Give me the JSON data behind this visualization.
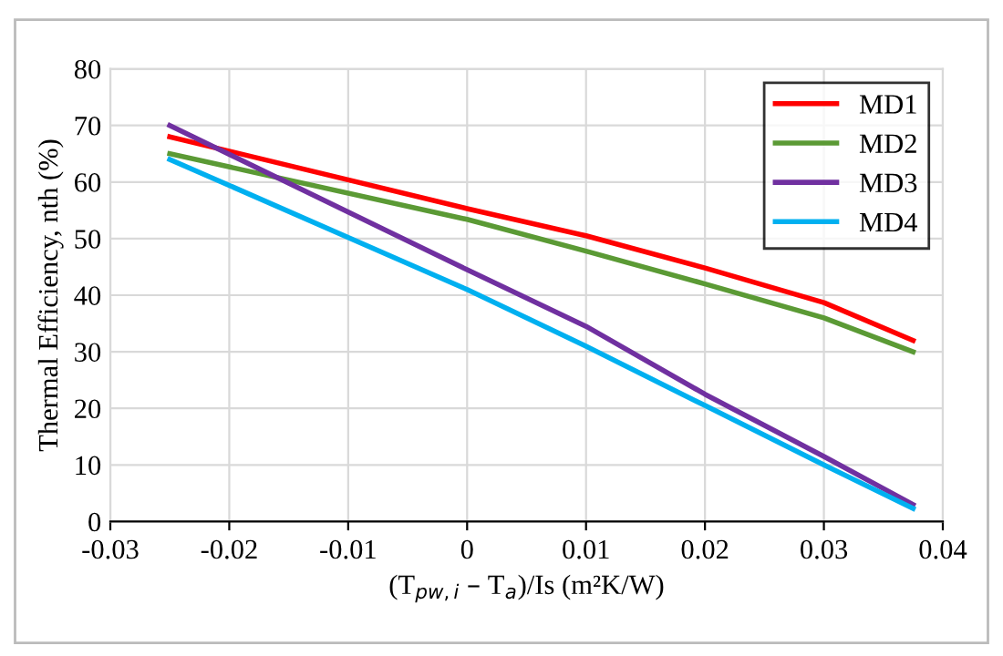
{
  "chart_data": {
    "type": "line",
    "xlabel": "(T$_{pw,i}$ – T$_{a}$)/Is (m²K/W)",
    "ylabel": "Thermal Efficiency, nth (%)",
    "x": [
      -0.025,
      0,
      0.01,
      0.02,
      0.03,
      0.0375
    ],
    "series": [
      {
        "name": "MD1",
        "color": "#ff0000",
        "values": [
          68,
          55.3,
          50.5,
          44.8,
          38.7,
          32
        ]
      },
      {
        "name": "MD2",
        "color": "#5b9a35",
        "values": [
          65,
          53.4,
          47.8,
          42,
          36,
          30
        ]
      },
      {
        "name": "MD3",
        "color": "#7030a0",
        "values": [
          70,
          44.5,
          34.5,
          22.5,
          11.5,
          3
        ]
      },
      {
        "name": "MD4",
        "color": "#00b0f0",
        "values": [
          64,
          41,
          31,
          20.5,
          10,
          2.3
        ]
      }
    ],
    "xlim": [
      -0.03,
      0.04
    ],
    "xticks": [
      -0.03,
      -0.02,
      -0.01,
      0,
      0.01,
      0.02,
      0.03,
      0.04
    ],
    "ylim": [
      0,
      80
    ],
    "yticks": [
      0,
      10,
      20,
      30,
      40,
      50,
      60,
      70,
      80
    ],
    "grid": true,
    "legend": "top right",
    "marker": "none",
    "line_style": "solid"
  }
}
